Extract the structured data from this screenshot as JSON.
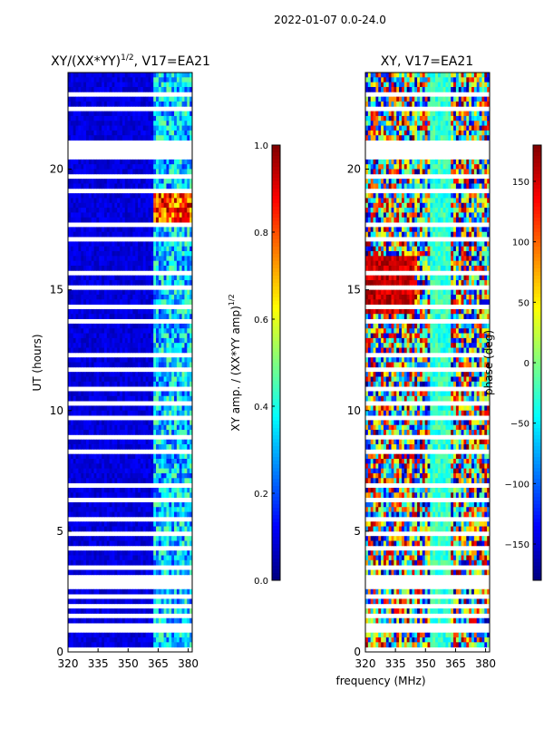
{
  "suptitle": "2022-01-07 0.0-24.0",
  "shared_xlabel": "frequency (MHz)",
  "chart_data": [
    {
      "type": "heatmap",
      "title": "XY/(XX*YY)",
      "title_exponent": "1/2",
      "title_suffix": ", V17=EA21",
      "xlabel": "",
      "ylabel": "UT (hours)",
      "xlim": [
        320,
        382
      ],
      "ylim": [
        0,
        24
      ],
      "xticks": [
        320,
        335,
        350,
        365,
        380
      ],
      "yticks": [
        0,
        5,
        10,
        15,
        20
      ],
      "colorbar": {
        "label": "XY amp. / (XX*YY amp)",
        "label_exponent": "1/2",
        "vmin": 0.0,
        "vmax": 1.0,
        "ticks": [
          "0.0",
          "0.2",
          "0.4",
          "0.6",
          "0.8",
          "1.0"
        ],
        "tick_values": [
          0.0,
          0.2,
          0.4,
          0.6,
          0.8,
          1.0
        ]
      }
    },
    {
      "type": "heatmap",
      "title": "XY, V17=EA21",
      "xlabel": "frequency (MHz)",
      "ylabel": "",
      "xlim": [
        320,
        382
      ],
      "ylim": [
        0,
        24
      ],
      "xticks": [
        320,
        335,
        350,
        365,
        380
      ],
      "yticks": [
        0,
        5,
        10,
        15,
        20
      ],
      "colorbar": {
        "label": "phase (deg)",
        "vmin": -180,
        "vmax": 180,
        "ticks": [
          "150",
          "100",
          "50",
          "0",
          "−50",
          "−100",
          "−150"
        ],
        "tick_values": [
          150,
          100,
          50,
          0,
          -50,
          -100,
          -150
        ]
      }
    }
  ]
}
